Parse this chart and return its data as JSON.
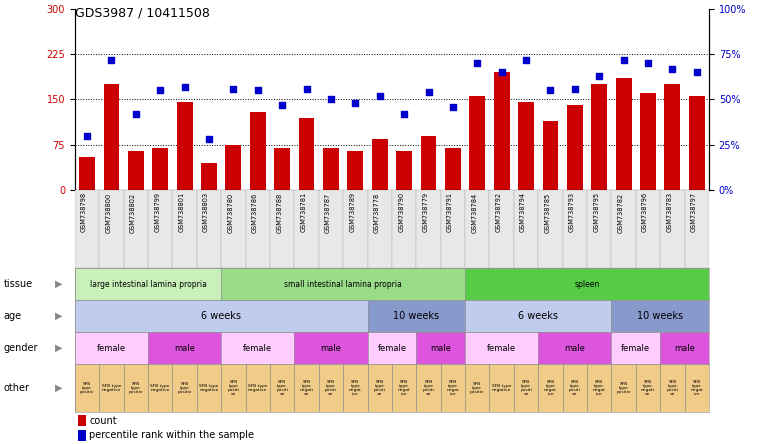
{
  "title": "GDS3987 / 10411508",
  "samples": [
    "GSM738798",
    "GSM738800",
    "GSM738802",
    "GSM738799",
    "GSM738801",
    "GSM738803",
    "GSM738780",
    "GSM738786",
    "GSM738788",
    "GSM738781",
    "GSM738787",
    "GSM738789",
    "GSM738778",
    "GSM738790",
    "GSM738779",
    "GSM738791",
    "GSM738784",
    "GSM738792",
    "GSM738794",
    "GSM738785",
    "GSM738793",
    "GSM738795",
    "GSM738782",
    "GSM738796",
    "GSM738783",
    "GSM738797"
  ],
  "counts": [
    55,
    175,
    65,
    70,
    145,
    45,
    75,
    130,
    70,
    120,
    70,
    65,
    85,
    65,
    90,
    70,
    155,
    195,
    145,
    115,
    140,
    175,
    185,
    160,
    175,
    155
  ],
  "percentiles": [
    30,
    72,
    42,
    55,
    57,
    28,
    56,
    55,
    47,
    56,
    50,
    48,
    52,
    42,
    54,
    46,
    70,
    65,
    72,
    55,
    56,
    63,
    72,
    70,
    67,
    65
  ],
  "bar_color": "#cc0000",
  "dot_color": "#0000cc",
  "left_yticks": [
    0,
    75,
    150,
    225,
    300
  ],
  "right_yticks": [
    0,
    25,
    50,
    75,
    100
  ],
  "right_yticklabels": [
    "0%",
    "25%",
    "50%",
    "75%",
    "100%"
  ],
  "hline_values": [
    75,
    150,
    225
  ],
  "tissue_groups": [
    {
      "label": "large intestinal lamina propria",
      "start": 0,
      "end": 6,
      "color": "#c8f0b8"
    },
    {
      "label": "small intestinal lamina propria",
      "start": 6,
      "end": 16,
      "color": "#88dd88"
    },
    {
      "label": "spleen",
      "start": 16,
      "end": 26,
      "color": "#55cc44"
    }
  ],
  "age_groups": [
    {
      "label": "6 weeks",
      "start": 0,
      "end": 12,
      "color": "#c0ccee"
    },
    {
      "label": "10 weeks",
      "start": 12,
      "end": 16,
      "color": "#8899cc"
    },
    {
      "label": "6 weeks",
      "start": 16,
      "end": 22,
      "color": "#c0ccee"
    },
    {
      "label": "10 weeks",
      "start": 22,
      "end": 26,
      "color": "#8899cc"
    }
  ],
  "gender_groups": [
    {
      "label": "female",
      "start": 0,
      "end": 3,
      "color": "#ffccff"
    },
    {
      "label": "male",
      "start": 3,
      "end": 6,
      "color": "#dd55dd"
    },
    {
      "label": "female",
      "start": 6,
      "end": 9,
      "color": "#ffccff"
    },
    {
      "label": "male",
      "start": 9,
      "end": 12,
      "color": "#dd55dd"
    },
    {
      "label": "female",
      "start": 12,
      "end": 14,
      "color": "#ffccff"
    },
    {
      "label": "male",
      "start": 14,
      "end": 16,
      "color": "#dd55dd"
    },
    {
      "label": "female",
      "start": 16,
      "end": 19,
      "color": "#ffccff"
    },
    {
      "label": "male",
      "start": 19,
      "end": 22,
      "color": "#dd55dd"
    },
    {
      "label": "female",
      "start": 22,
      "end": 24,
      "color": "#ffccff"
    },
    {
      "label": "male",
      "start": 24,
      "end": 26,
      "color": "#dd55dd"
    }
  ],
  "other_groups": [
    {
      "label": "SFB\ntype\npositiv",
      "start": 0,
      "end": 1
    },
    {
      "label": "SFB type\nnegative",
      "start": 1,
      "end": 2
    },
    {
      "label": "SFB\ntype\npositiv",
      "start": 2,
      "end": 3
    },
    {
      "label": "SFB type\nnegative",
      "start": 3,
      "end": 4
    },
    {
      "label": "SFB\ntype\npositiv",
      "start": 4,
      "end": 5
    },
    {
      "label": "SFB type\nnegative",
      "start": 5,
      "end": 6
    },
    {
      "label": "SFB\ntype\npositi\nve",
      "start": 6,
      "end": 7
    },
    {
      "label": "SFB type\nnegative",
      "start": 7,
      "end": 8
    },
    {
      "label": "SFB\ntype\npositi\nve",
      "start": 8,
      "end": 9
    },
    {
      "label": "SFB\ntype\nnegati\nve",
      "start": 9,
      "end": 10
    },
    {
      "label": "SFB\ntype\npositi\nve",
      "start": 10,
      "end": 11
    },
    {
      "label": "SFB\ntype\nnegat\nive",
      "start": 11,
      "end": 12
    },
    {
      "label": "SFB\ntype\npositi\nve",
      "start": 12,
      "end": 13
    },
    {
      "label": "SFB\ntype\nnegat\nive",
      "start": 13,
      "end": 14
    },
    {
      "label": "SFB\ntype\npositi\nve",
      "start": 14,
      "end": 15
    },
    {
      "label": "SFB\ntype\nnegat\nive",
      "start": 15,
      "end": 16
    },
    {
      "label": "SFB\ntype\npositiv",
      "start": 16,
      "end": 17
    },
    {
      "label": "SFB type\nnegative",
      "start": 17,
      "end": 18
    },
    {
      "label": "SFB\ntype\npositi\nve",
      "start": 18,
      "end": 19
    },
    {
      "label": "SFB\ntype\nnegat\nive",
      "start": 19,
      "end": 20
    },
    {
      "label": "SFB\ntype\npositi\nve",
      "start": 20,
      "end": 21
    },
    {
      "label": "SFB\ntype\nnegat\nive",
      "start": 21,
      "end": 22
    },
    {
      "label": "SFB\ntype\npositiv",
      "start": 22,
      "end": 23
    },
    {
      "label": "SFB\ntype\nnegati\nve",
      "start": 23,
      "end": 24
    },
    {
      "label": "SFB\ntype\npositi\nve",
      "start": 24,
      "end": 25
    },
    {
      "label": "SFB\ntype\nnegat\nive",
      "start": 25,
      "end": 26
    }
  ],
  "other_color": "#f0cc88",
  "row_labels": [
    "tissue",
    "age",
    "gender",
    "other"
  ],
  "legend_items": [
    {
      "label": "count",
      "color": "#cc0000"
    },
    {
      "label": "percentile rank within the sample",
      "color": "#0000cc"
    }
  ],
  "fig_width": 7.64,
  "fig_height": 4.44
}
